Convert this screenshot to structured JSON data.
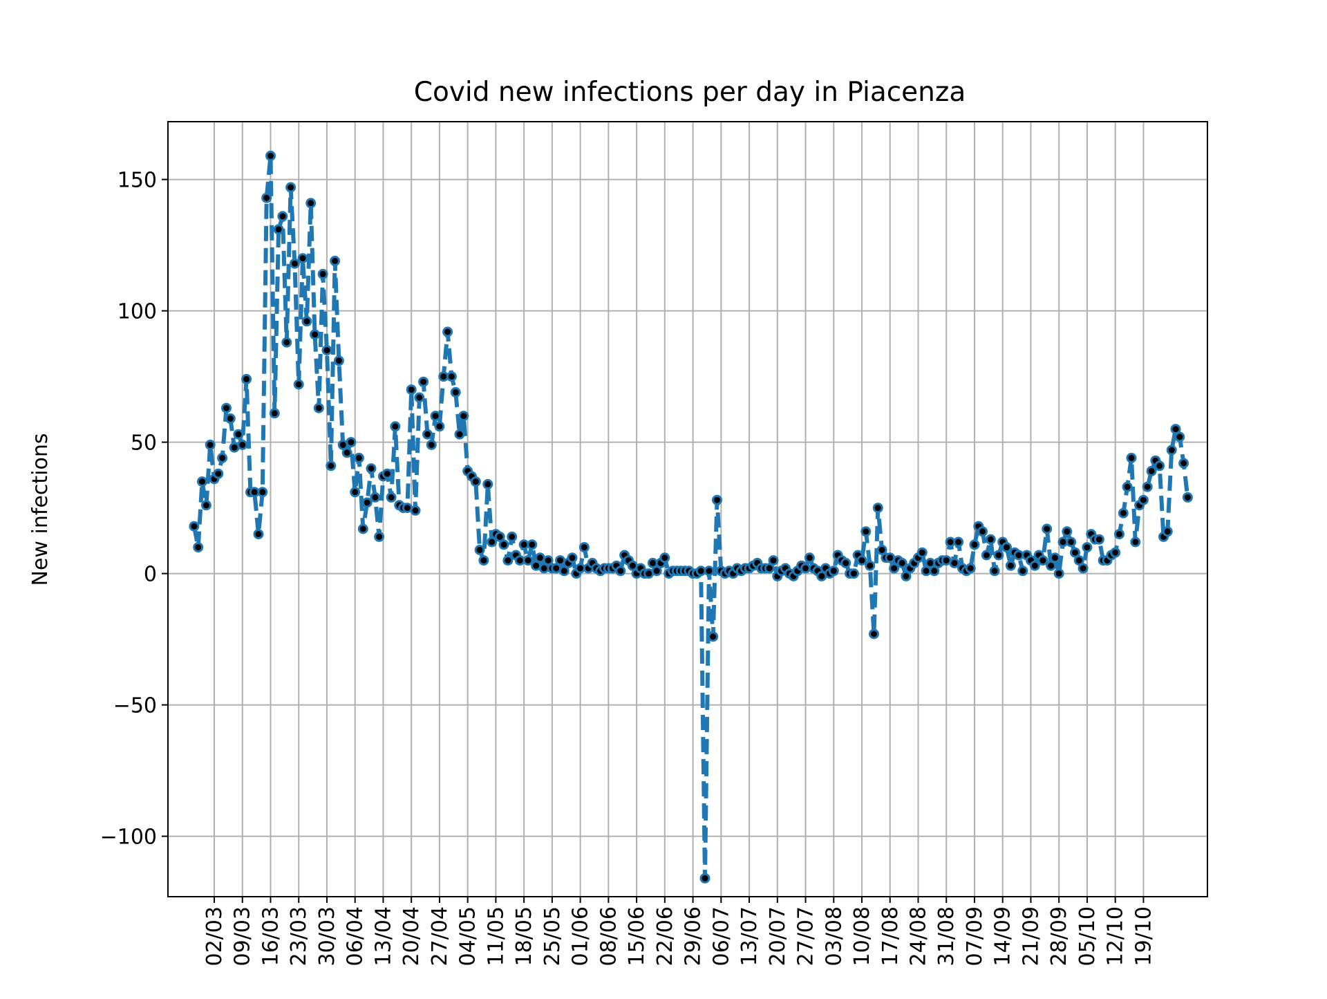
{
  "chart_data": {
    "type": "line",
    "title": "Covid new infections per day in Piacenza",
    "xlabel": "",
    "ylabel": "New infections",
    "ylim": [
      -123,
      172
    ],
    "yticks": [
      -100,
      -50,
      0,
      50,
      100,
      150
    ],
    "ytick_labels": [
      "−100",
      "−50",
      "0",
      "50",
      "100",
      "150"
    ],
    "xticks": [
      "02/03",
      "09/03",
      "16/03",
      "23/03",
      "30/03",
      "06/04",
      "13/04",
      "20/04",
      "27/04",
      "04/05",
      "11/05",
      "18/05",
      "25/05",
      "01/06",
      "08/06",
      "15/06",
      "22/06",
      "29/06",
      "06/07",
      "13/07",
      "20/07",
      "27/07",
      "03/08",
      "10/08",
      "17/08",
      "24/08",
      "31/08",
      "07/09",
      "14/09",
      "21/09",
      "28/09",
      "05/10",
      "12/10",
      "19/10"
    ],
    "x_start": "25/02",
    "grid": true,
    "series": [
      {
        "color": "#1f77b4",
        "marker_color": "#000000",
        "linestyle": "dashed",
        "values": [
          18,
          10,
          35,
          26,
          49,
          36,
          38,
          44,
          63,
          59,
          48,
          53,
          49,
          74,
          31,
          31,
          15,
          31,
          143,
          159,
          61,
          131,
          136,
          88,
          147,
          118,
          72,
          120,
          96,
          141,
          91,
          63,
          114,
          85,
          41,
          119,
          81,
          49,
          46,
          50,
          31,
          44,
          17,
          27,
          40,
          29,
          14,
          37,
          38,
          29,
          56,
          26,
          25,
          25,
          70,
          24,
          67,
          73,
          53,
          49,
          60,
          56,
          75,
          92,
          75,
          69,
          53,
          60,
          39,
          37,
          35,
          9,
          5,
          34,
          12,
          15,
          14,
          11,
          5,
          14,
          7,
          5,
          11,
          5,
          11,
          3,
          6,
          2,
          5,
          2,
          2,
          5,
          1,
          4,
          6,
          0,
          2,
          10,
          2,
          4,
          2,
          1,
          2,
          2,
          2,
          3,
          1,
          7,
          5,
          3,
          0,
          2,
          0,
          0,
          4,
          1,
          4,
          6,
          0,
          1,
          1,
          1,
          1,
          1,
          0,
          0,
          1,
          -116,
          1,
          -24,
          28,
          1,
          0,
          1,
          0,
          2,
          1,
          2,
          2,
          3,
          4,
          2,
          2,
          2,
          5,
          -1,
          1,
          2,
          0,
          -1,
          1,
          3,
          2,
          6,
          2,
          1,
          -1,
          2,
          0,
          1,
          7,
          5,
          4,
          0,
          0,
          7,
          5,
          16,
          3,
          -23,
          25,
          9,
          6,
          6,
          2,
          5,
          4,
          -1,
          2,
          4,
          6,
          8,
          1,
          4,
          1,
          4,
          5,
          5,
          12,
          4,
          12,
          2,
          1,
          2,
          11,
          18,
          16,
          7,
          13,
          1,
          7,
          12,
          10,
          3,
          8,
          7,
          1,
          7,
          5,
          3,
          7,
          5,
          17,
          3,
          6,
          0,
          12,
          16,
          12,
          8,
          5,
          2,
          10,
          15,
          13,
          13,
          5,
          5,
          7,
          8,
          15,
          23,
          33,
          44,
          12,
          26,
          28,
          33,
          39,
          43,
          41,
          14,
          16,
          47,
          55,
          52,
          42,
          29
        ]
      }
    ]
  }
}
